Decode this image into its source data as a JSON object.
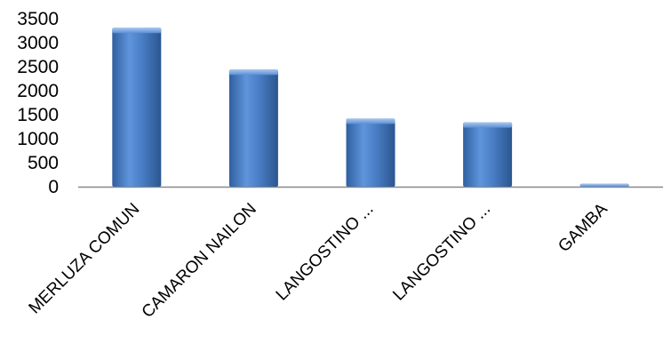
{
  "chart_data": {
    "type": "bar",
    "categories": [
      "MERLUZA COMUN",
      "CAMARON NAILON",
      "LANGOSTINO ...",
      "LANGOSTINO ...",
      "GAMBA"
    ],
    "values": [
      3310,
      2440,
      1420,
      1340,
      60
    ],
    "title": "",
    "xlabel": "",
    "ylabel": "",
    "ylim": [
      0,
      3500
    ],
    "yticks": [
      "0",
      "500",
      "1000",
      "1500",
      "2000",
      "2500",
      "3000",
      "3500"
    ],
    "grid": false,
    "legend": "none",
    "bar_color": "#4a7ec6"
  }
}
